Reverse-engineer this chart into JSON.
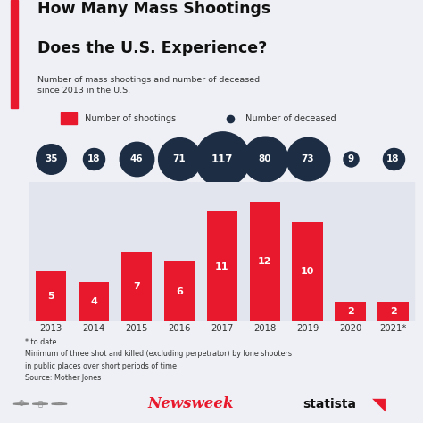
{
  "years": [
    "2013",
    "2014",
    "2015",
    "2016",
    "2017",
    "2018",
    "2019",
    "2020",
    "2021*"
  ],
  "shootings": [
    5,
    4,
    7,
    6,
    11,
    12,
    10,
    2,
    2
  ],
  "deceased": [
    35,
    18,
    46,
    71,
    117,
    80,
    73,
    9,
    18
  ],
  "bar_color": "#e8192c",
  "circle_color": "#1d2d44",
  "background_color": "#eef0f5",
  "plot_col_bg": "#e2e5ee",
  "title_line1": "How Many Mass Shootings",
  "title_line2": "Does the U.S. Experience?",
  "subtitle": "Number of mass shootings and number of deceased\nsince 2013 in the U.S.",
  "legend_shootings": "Number of shootings",
  "legend_deceased": "Number of deceased",
  "footnote": "* to date\nMinimum of three shot and killed (excluding perpetrator) by lone shooters\nin public places over short periods of time\nSource: Mother Jones",
  "accent_color": "#e8192c",
  "title_color": "#111111",
  "text_color": "#333333",
  "white": "#ffffff"
}
